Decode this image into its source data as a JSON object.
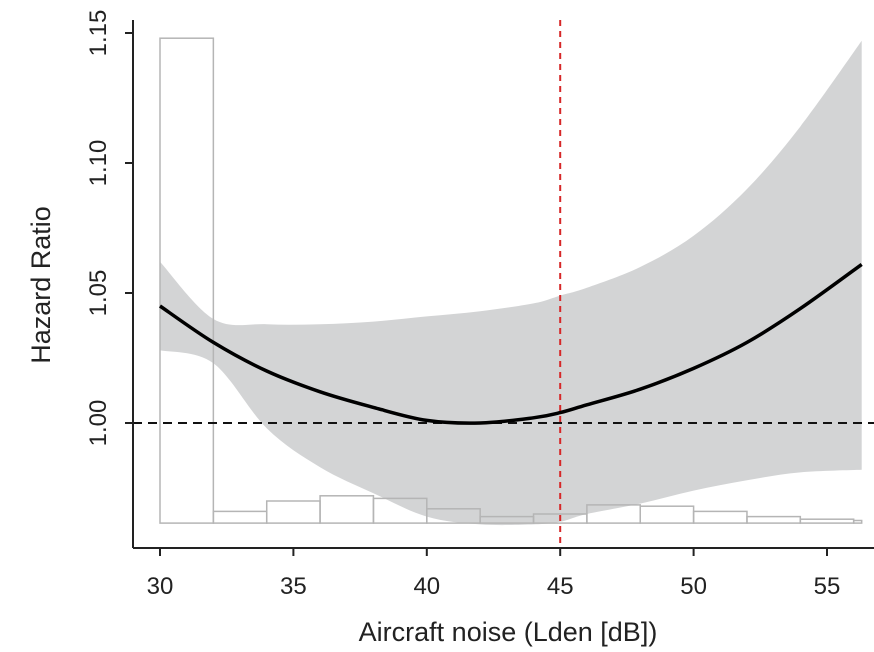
{
  "chart_data": {
    "type": "line",
    "title": "",
    "xlabel": "Aircraft noise (Lden [dB])",
    "ylabel": "Hazard Ratio",
    "xlim": [
      29,
      56.3
    ],
    "ylim": [
      0.958,
      1.15
    ],
    "x_ticks": [
      30,
      35,
      40,
      45,
      50,
      55
    ],
    "x_tick_labels": [
      "30",
      "35",
      "40",
      "45",
      "50",
      "55"
    ],
    "y_ticks": [
      1.0,
      1.05,
      1.1,
      1.15
    ],
    "y_tick_labels": [
      "1.00",
      "1.05",
      "1.10",
      "1.15"
    ],
    "grid": false,
    "reference_line": {
      "y": 1.0,
      "style": "dashed",
      "color": "#111111"
    },
    "vertical_line": {
      "x": 45,
      "style": "dashed",
      "color": "#d62728"
    },
    "series": [
      {
        "type": "line",
        "x": [
          30,
          32,
          34,
          36,
          38,
          40,
          42,
          44,
          45,
          46,
          48,
          50,
          52,
          54,
          56.3
        ],
        "y": [
          1.045,
          1.031,
          1.02,
          1.012,
          1.006,
          1.001,
          1.0,
          1.002,
          1.004,
          1.007,
          1.013,
          1.021,
          1.031,
          1.044,
          1.061
        ],
        "color": "#000000"
      },
      {
        "type": "band",
        "x": [
          30,
          32,
          34,
          36,
          38,
          40,
          42,
          44,
          45,
          46,
          48,
          50,
          52,
          54,
          56.3
        ],
        "upper": [
          1.062,
          1.04,
          1.038,
          1.038,
          1.039,
          1.041,
          1.043,
          1.046,
          1.049,
          1.052,
          1.06,
          1.072,
          1.09,
          1.114,
          1.147
        ],
        "lower": [
          1.028,
          1.023,
          0.998,
          0.983,
          0.973,
          0.964,
          0.961,
          0.961,
          0.962,
          0.965,
          0.969,
          0.974,
          0.978,
          0.981,
          0.982
        ],
        "color": "#d3d4d5"
      }
    ],
    "histogram": {
      "baseline": 0.9615,
      "bins": [
        {
          "from": 30,
          "to": 32,
          "height": 1.148
        },
        {
          "from": 32,
          "to": 34,
          "height": 0.966
        },
        {
          "from": 34,
          "to": 36,
          "height": 0.97
        },
        {
          "from": 36,
          "to": 38,
          "height": 0.972
        },
        {
          "from": 38,
          "to": 40,
          "height": 0.971
        },
        {
          "from": 40,
          "to": 42,
          "height": 0.967
        },
        {
          "from": 42,
          "to": 44,
          "height": 0.964
        },
        {
          "from": 44,
          "to": 46,
          "height": 0.965
        },
        {
          "from": 46,
          "to": 48,
          "height": 0.9685
        },
        {
          "from": 48,
          "to": 50,
          "height": 0.968
        },
        {
          "from": 50,
          "to": 52,
          "height": 0.966
        },
        {
          "from": 52,
          "to": 54,
          "height": 0.964
        },
        {
          "from": 54,
          "to": 56,
          "height": 0.963
        },
        {
          "from": 56,
          "to": 56.3,
          "height": 0.9625
        }
      ],
      "stroke": "#b5b5b5"
    }
  }
}
